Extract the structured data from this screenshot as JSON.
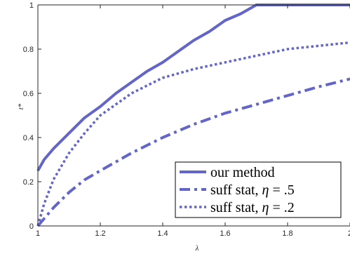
{
  "chart_data": {
    "type": "line",
    "title": "",
    "xlabel": "λ",
    "ylabel": "t*",
    "xlim": [
      1,
      2
    ],
    "ylim": [
      0,
      1
    ],
    "grid": false,
    "legend_position": "bottom-right",
    "x_ticks": [
      "1",
      "1.2",
      "1.4",
      "1.6",
      "1.8",
      "2"
    ],
    "y_ticks": [
      "0",
      "0.2",
      "0.4",
      "0.6",
      "0.8",
      "1"
    ],
    "x_tick_values": [
      1,
      1.2,
      1.4,
      1.6,
      1.8,
      2
    ],
    "y_tick_values": [
      0,
      0.2,
      0.4,
      0.6,
      0.8,
      1
    ],
    "color": "#6366c8",
    "series": [
      {
        "name": "our method",
        "style": "solid",
        "x": [
          1,
          1.02,
          1.05,
          1.1,
          1.15,
          1.2,
          1.25,
          1.3,
          1.35,
          1.4,
          1.45,
          1.5,
          1.55,
          1.6,
          1.65,
          1.7,
          1.75,
          1.8,
          1.85,
          1.9,
          1.95,
          2
        ],
        "y": [
          0.25,
          0.3,
          0.35,
          0.42,
          0.49,
          0.54,
          0.6,
          0.65,
          0.7,
          0.74,
          0.79,
          0.84,
          0.88,
          0.93,
          0.96,
          1,
          1,
          1,
          1,
          1,
          1,
          1
        ]
      },
      {
        "name": "suff stat, η = .5",
        "legend_prefix": "suff stat, ",
        "legend_var": "η",
        "legend_suffix": " = .5",
        "style": "dashdot",
        "x": [
          1,
          1.05,
          1.1,
          1.15,
          1.2,
          1.3,
          1.4,
          1.5,
          1.6,
          1.7,
          1.8,
          1.9,
          2
        ],
        "y": [
          0,
          0.083,
          0.152,
          0.209,
          0.25,
          0.33,
          0.4,
          0.46,
          0.51,
          0.55,
          0.59,
          0.63,
          0.665
        ]
      },
      {
        "name": "suff stat, η = .2",
        "legend_prefix": "suff stat, ",
        "legend_var": "η",
        "legend_suffix": " = .2",
        "style": "dotted",
        "x": [
          1,
          1.02,
          1.05,
          1.1,
          1.15,
          1.2,
          1.3,
          1.4,
          1.5,
          1.6,
          1.7,
          1.8,
          1.9,
          2
        ],
        "y": [
          0,
          0.1,
          0.21,
          0.33,
          0.42,
          0.5,
          0.6,
          0.67,
          0.71,
          0.74,
          0.77,
          0.8,
          0.815,
          0.83
        ]
      }
    ]
  }
}
